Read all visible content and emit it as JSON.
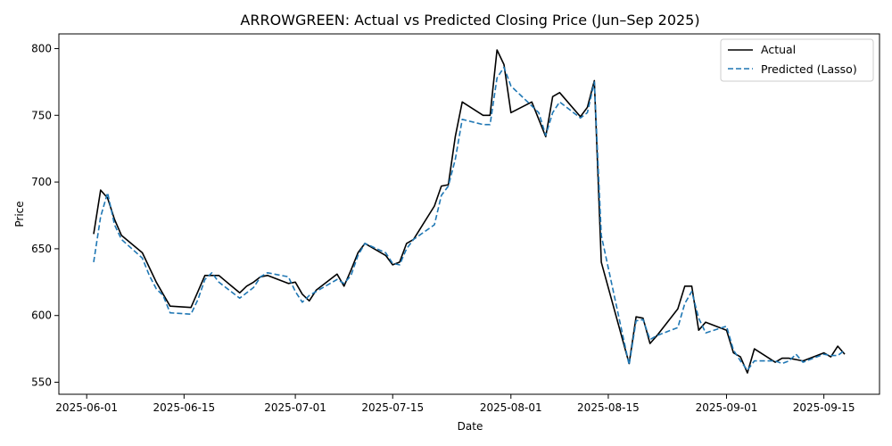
{
  "chart_data": {
    "type": "line",
    "title": "ARROWGREEN: Actual vs Predicted Closing Price (Jun–Sep 2025)",
    "xlabel": "Date",
    "ylabel": "Price",
    "x_tick_labels": [
      "2025-06-01",
      "2025-06-15",
      "2025-07-01",
      "2025-07-15",
      "2025-08-01",
      "2025-08-15",
      "2025-09-01",
      "2025-09-15"
    ],
    "y_ticks": [
      550,
      600,
      650,
      700,
      750,
      800
    ],
    "xlim": [
      "2025-05-28",
      "2025-09-23"
    ],
    "ylim": [
      541,
      811
    ],
    "grid": false,
    "legend_position": "top-right",
    "dates": [
      "2025-06-02",
      "2025-06-03",
      "2025-06-04",
      "2025-06-05",
      "2025-06-06",
      "2025-06-09",
      "2025-06-10",
      "2025-06-11",
      "2025-06-12",
      "2025-06-13",
      "2025-06-16",
      "2025-06-17",
      "2025-06-18",
      "2025-06-19",
      "2025-06-20",
      "2025-06-23",
      "2025-06-24",
      "2025-06-25",
      "2025-06-26",
      "2025-06-27",
      "2025-06-30",
      "2025-07-01",
      "2025-07-02",
      "2025-07-03",
      "2025-07-04",
      "2025-07-07",
      "2025-07-08",
      "2025-07-09",
      "2025-07-10",
      "2025-07-11",
      "2025-07-14",
      "2025-07-15",
      "2025-07-16",
      "2025-07-17",
      "2025-07-18",
      "2025-07-21",
      "2025-07-22",
      "2025-07-23",
      "2025-07-24",
      "2025-07-25",
      "2025-07-28",
      "2025-07-29",
      "2025-07-30",
      "2025-07-31",
      "2025-08-01",
      "2025-08-04",
      "2025-08-05",
      "2025-08-06",
      "2025-08-07",
      "2025-08-08",
      "2025-08-11",
      "2025-08-12",
      "2025-08-13",
      "2025-08-14",
      "2025-08-18",
      "2025-08-19",
      "2025-08-20",
      "2025-08-21",
      "2025-08-22",
      "2025-08-25",
      "2025-08-26",
      "2025-08-27",
      "2025-08-28",
      "2025-08-29",
      "2025-09-01",
      "2025-09-02",
      "2025-09-03",
      "2025-09-04",
      "2025-09-05",
      "2025-09-08",
      "2025-09-09",
      "2025-09-10",
      "2025-09-11",
      "2025-09-12",
      "2025-09-15",
      "2025-09-16",
      "2025-09-17",
      "2025-09-18"
    ],
    "series": [
      {
        "name": "Actual",
        "color": "#000000",
        "style": "solid",
        "values": [
          661,
          694,
          688,
          672,
          660,
          647,
          636,
          625,
          616,
          607,
          606,
          618,
          630,
          630,
          630,
          617,
          622,
          625,
          629,
          630,
          624,
          625,
          616,
          611,
          619,
          631,
          622,
          634,
          647,
          654,
          645,
          638,
          640,
          654,
          657,
          682,
          697,
          698,
          734,
          760,
          750,
          750,
          799,
          788,
          752,
          760,
          747,
          734,
          764,
          767,
          749,
          756,
          776,
          640,
          564,
          599,
          598,
          579,
          585,
          605,
          622,
          622,
          589,
          595,
          589,
          572,
          569,
          557,
          575,
          565,
          568,
          568,
          567,
          566,
          572,
          569,
          577,
          571
        ],
        "_note": "first and last dates may be adjusted below"
      },
      {
        "name": "Predicted (Lasso)",
        "color": "#1f77b4",
        "style": "dashed",
        "values": [
          640,
          674,
          692,
          668,
          657,
          643,
          630,
          620,
          615,
          602,
          601,
          612,
          627,
          632,
          625,
          613,
          617,
          621,
          629,
          632,
          629,
          618,
          610,
          615,
          618,
          627,
          624,
          630,
          645,
          654,
          647,
          639,
          638,
          650,
          657,
          668,
          690,
          697,
          717,
          747,
          743,
          743,
          778,
          786,
          772,
          757,
          752,
          735,
          752,
          760,
          748,
          752,
          775,
          660,
          563,
          596,
          597,
          582,
          585,
          591,
          609,
          618,
          598,
          587,
          592,
          574,
          566,
          559,
          566,
          566,
          564,
          566,
          571,
          565,
          571,
          570,
          570,
          574
        ]
      }
    ]
  }
}
